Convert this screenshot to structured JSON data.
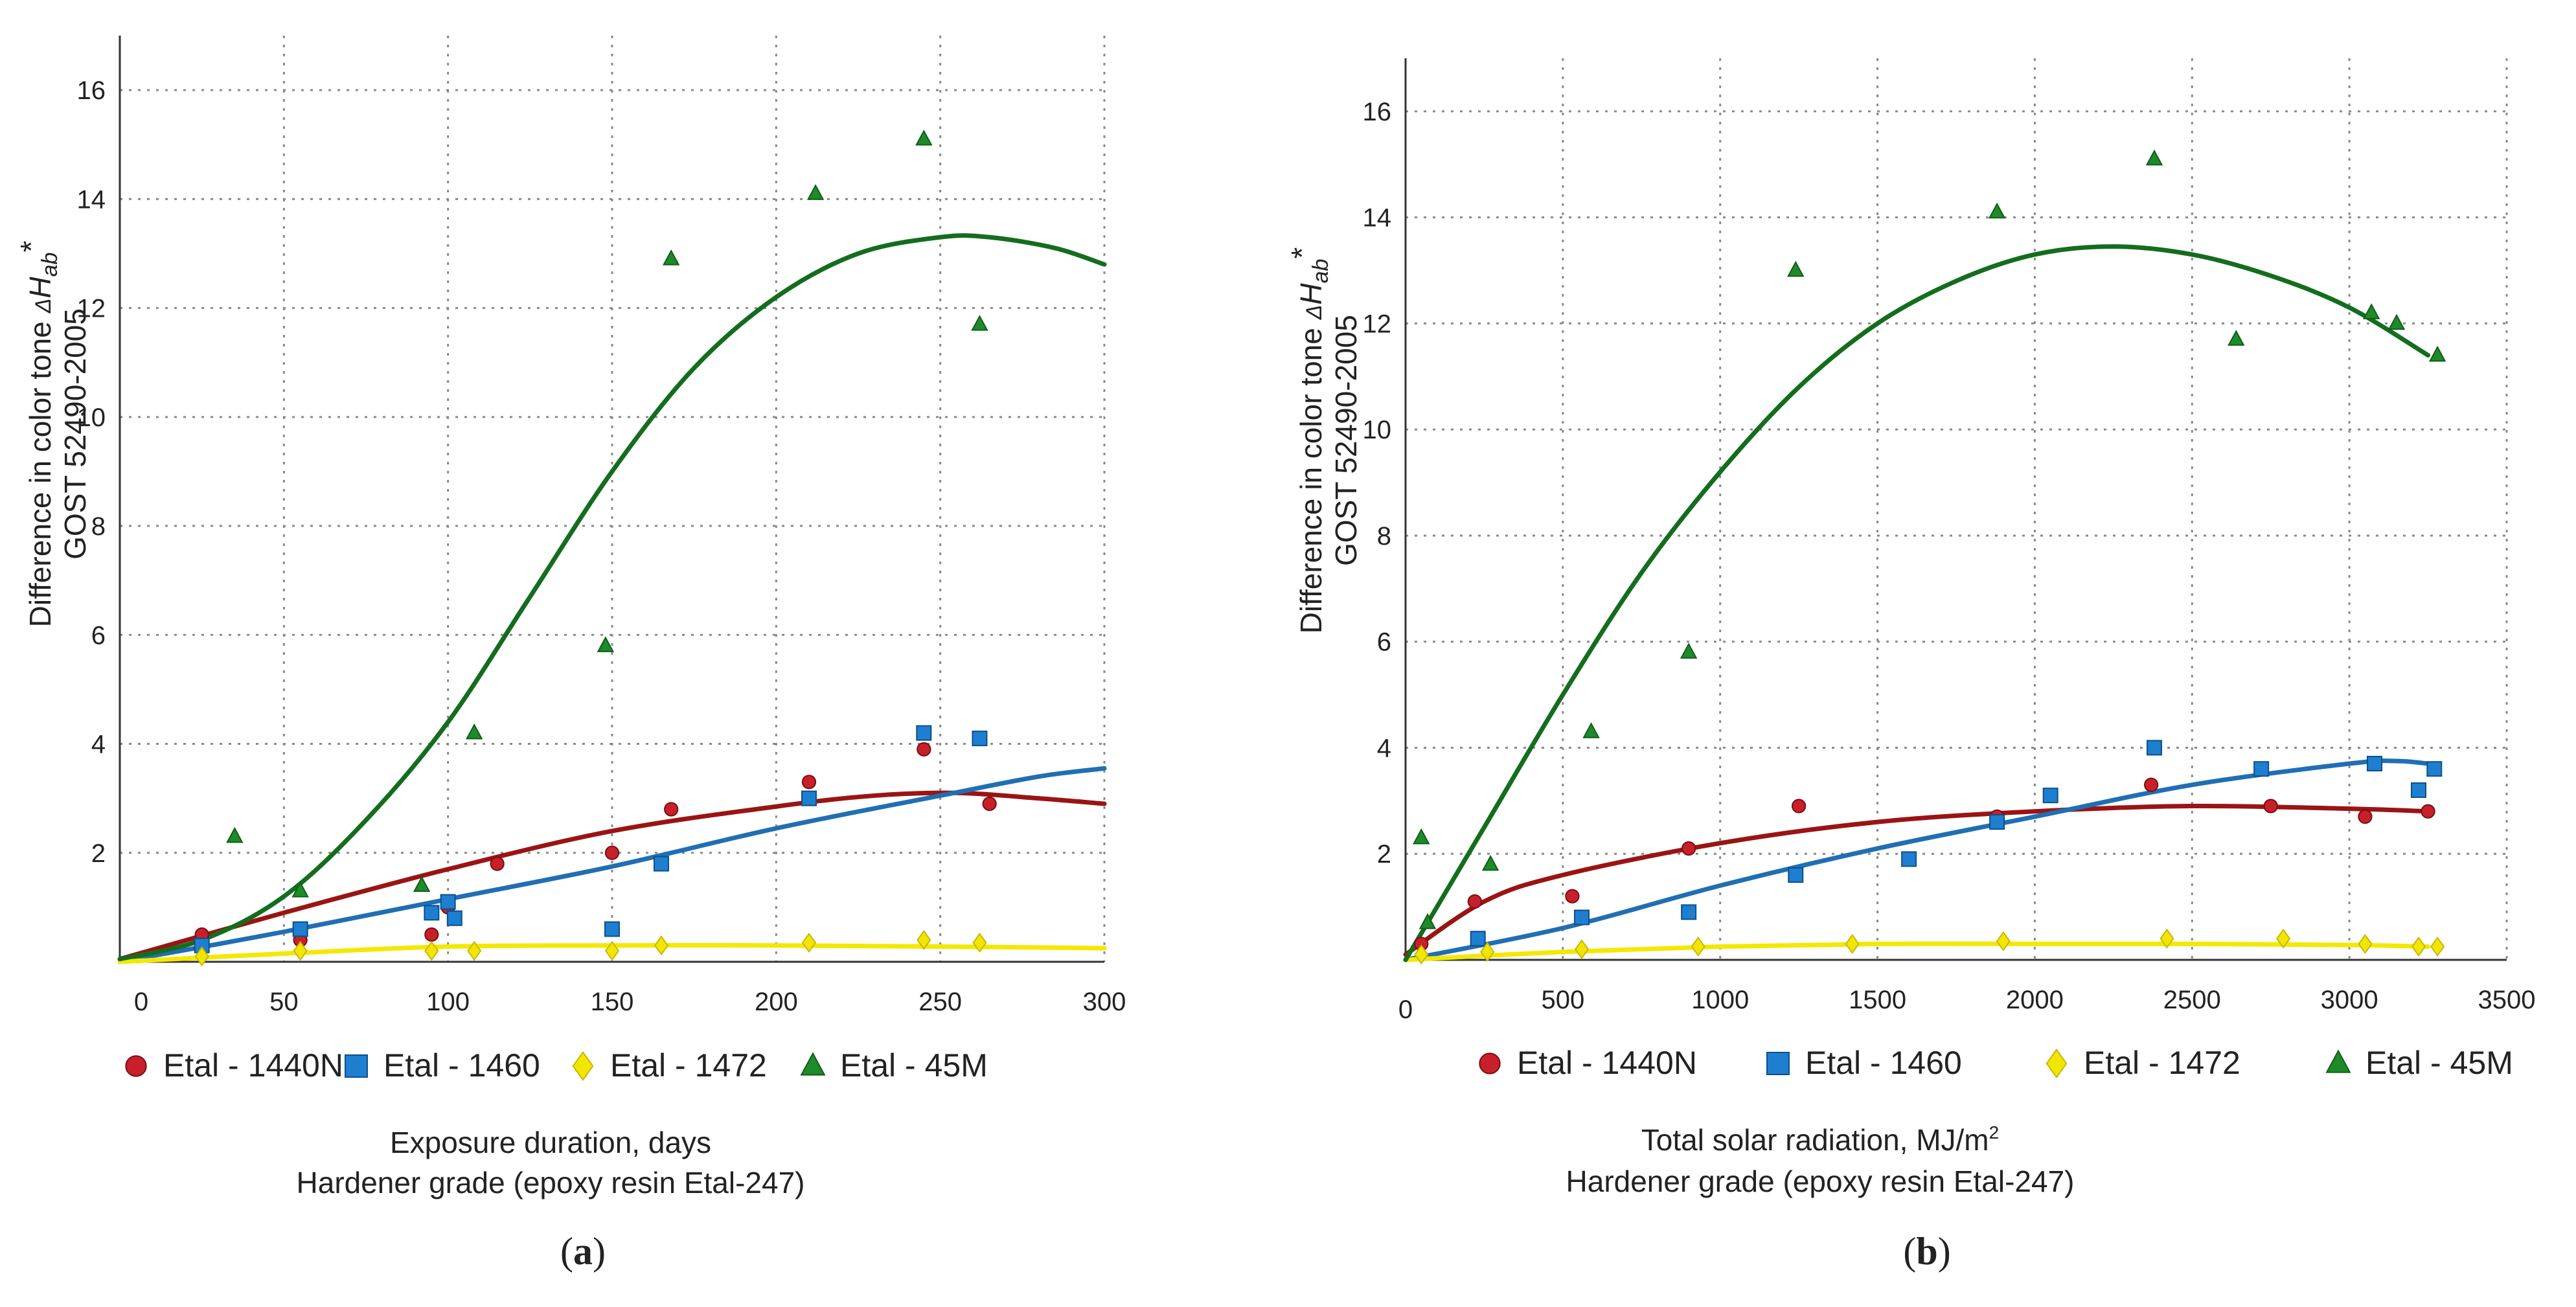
{
  "figure": {
    "series_styles": [
      {
        "name": "Etal - 1440N",
        "color": "#c8202a",
        "marker": "circle"
      },
      {
        "name": "Etal - 1460",
        "color": "#1e7fd0",
        "marker": "square"
      },
      {
        "name": "Etal - 1472",
        "color": "#f2e600",
        "marker": "diamond"
      },
      {
        "name": "Etal - 45M",
        "color": "#1e8a2a",
        "marker": "triangle"
      }
    ],
    "trend_colors": [
      "#9a1414",
      "#1f6fb4",
      "#f4e800",
      "#146d1e"
    ]
  },
  "chart_data": [
    {
      "id": "a",
      "type": "scatter",
      "caption_open": "(",
      "caption_letter": "a",
      "caption_close": ")",
      "ylabel_line1": "Difference in color tone ",
      "ylabel_delta": "Δ",
      "ylabel_symbol": "H",
      "ylabel_sub": "ab",
      "ylabel_star": "*",
      "ylabel_line2": "GOST  52490-2005",
      "xlabel_line1": "Exposure duration, days",
      "xlabel_line2": "Hardener grade (epoxy resin Etal-247)",
      "origin_label": "0",
      "xlim": [
        0,
        300
      ],
      "ylim": [
        0,
        17
      ],
      "xticks": [
        50,
        100,
        150,
        200,
        250,
        300
      ],
      "yticks": [
        2,
        4,
        6,
        8,
        10,
        12,
        14,
        16
      ],
      "grid": true,
      "legend_position": "bottom",
      "series": [
        {
          "name": "Etal - 1440N",
          "points": [
            [
              25,
              0.5
            ],
            [
              55,
              0.4
            ],
            [
              95,
              0.5
            ],
            [
              100,
              1.0
            ],
            [
              115,
              1.8
            ],
            [
              150,
              2.0
            ],
            [
              168,
              2.8
            ],
            [
              210,
              3.3
            ],
            [
              245,
              3.9
            ],
            [
              265,
              2.9
            ]
          ],
          "trend": [
            [
              0,
              0.05
            ],
            [
              50,
              0.9
            ],
            [
              100,
              1.7
            ],
            [
              150,
              2.4
            ],
            [
              200,
              2.85
            ],
            [
              230,
              3.05
            ],
            [
              255,
              3.1
            ],
            [
              280,
              3.0
            ],
            [
              300,
              2.9
            ]
          ]
        },
        {
          "name": "Etal - 1460",
          "points": [
            [
              25,
              0.3
            ],
            [
              55,
              0.6
            ],
            [
              95,
              0.9
            ],
            [
              100,
              1.1
            ],
            [
              102,
              0.8
            ],
            [
              150,
              0.6
            ],
            [
              165,
              1.8
            ],
            [
              210,
              3.0
            ],
            [
              245,
              4.2
            ],
            [
              262,
              4.1
            ]
          ],
          "trend": [
            [
              0,
              0.0
            ],
            [
              50,
              0.55
            ],
            [
              100,
              1.15
            ],
            [
              150,
              1.75
            ],
            [
              200,
              2.45
            ],
            [
              250,
              3.05
            ],
            [
              280,
              3.4
            ],
            [
              300,
              3.55
            ]
          ]
        },
        {
          "name": "Etal - 1472",
          "points": [
            [
              25,
              0.1
            ],
            [
              55,
              0.2
            ],
            [
              95,
              0.2
            ],
            [
              108,
              0.2
            ],
            [
              150,
              0.2
            ],
            [
              165,
              0.3
            ],
            [
              210,
              0.35
            ],
            [
              245,
              0.4
            ],
            [
              262,
              0.35
            ]
          ],
          "trend": [
            [
              0,
              0.0
            ],
            [
              50,
              0.15
            ],
            [
              100,
              0.28
            ],
            [
              150,
              0.3
            ],
            [
              200,
              0.3
            ],
            [
              250,
              0.28
            ],
            [
              300,
              0.25
            ]
          ]
        },
        {
          "name": "Etal - 45M",
          "points": [
            [
              35,
              2.3
            ],
            [
              55,
              1.3
            ],
            [
              92,
              1.4
            ],
            [
              108,
              4.2
            ],
            [
              148,
              5.8
            ],
            [
              168,
              12.9
            ],
            [
              212,
              14.1
            ],
            [
              245,
              15.1
            ],
            [
              262,
              11.7
            ]
          ],
          "trend": [
            [
              0,
              0.05
            ],
            [
              25,
              0.4
            ],
            [
              50,
              1.2
            ],
            [
              75,
              2.6
            ],
            [
              100,
              4.4
            ],
            [
              125,
              6.7
            ],
            [
              150,
              9.0
            ],
            [
              175,
              10.9
            ],
            [
              200,
              12.2
            ],
            [
              225,
              13.0
            ],
            [
              250,
              13.3
            ],
            [
              265,
              13.3
            ],
            [
              285,
              13.1
            ],
            [
              300,
              12.8
            ]
          ]
        }
      ]
    },
    {
      "id": "b",
      "type": "scatter",
      "caption_open": "(",
      "caption_letter": "b",
      "caption_close": ")",
      "ylabel_line1": "Difference in color tone ",
      "ylabel_delta": "Δ",
      "ylabel_symbol": "H",
      "ylabel_sub": "ab",
      "ylabel_star": "*",
      "ylabel_line2": "GOST  52490-2005",
      "xlabel_line1": "Total solar radiation, MJ/m",
      "xlabel_sup": "2",
      "xlabel_line2": "Hardener grade (epoxy resin Etal-247)",
      "origin_label": "0",
      "xlim": [
        0,
        3500
      ],
      "ylim": [
        0,
        17
      ],
      "xticks": [
        500,
        1000,
        1500,
        2000,
        2500,
        3000,
        3500
      ],
      "yticks": [
        2,
        4,
        6,
        8,
        10,
        12,
        14,
        16
      ],
      "grid": true,
      "legend_position": "bottom",
      "series": [
        {
          "name": "Etal - 1440N",
          "points": [
            [
              50,
              0.3
            ],
            [
              220,
              1.1
            ],
            [
              530,
              1.2
            ],
            [
              900,
              2.1
            ],
            [
              1250,
              2.9
            ],
            [
              1880,
              2.7
            ],
            [
              2370,
              3.3
            ],
            [
              2750,
              2.9
            ],
            [
              3050,
              2.7
            ],
            [
              3250,
              2.8
            ]
          ],
          "trend": [
            [
              0,
              0.1
            ],
            [
              250,
              1.1
            ],
            [
              500,
              1.6
            ],
            [
              1000,
              2.2
            ],
            [
              1500,
              2.6
            ],
            [
              2000,
              2.8
            ],
            [
              2500,
              2.9
            ],
            [
              3000,
              2.85
            ],
            [
              3250,
              2.8
            ]
          ]
        },
        {
          "name": "Etal - 1460",
          "points": [
            [
              230,
              0.4
            ],
            [
              560,
              0.8
            ],
            [
              900,
              0.9
            ],
            [
              1240,
              1.6
            ],
            [
              1600,
              1.9
            ],
            [
              1880,
              2.6
            ],
            [
              2050,
              3.1
            ],
            [
              2380,
              4.0
            ],
            [
              2720,
              3.6
            ],
            [
              3080,
              3.7
            ],
            [
              3220,
              3.2
            ],
            [
              3270,
              3.6
            ]
          ],
          "trend": [
            [
              0,
              0.0
            ],
            [
              500,
              0.6
            ],
            [
              1000,
              1.4
            ],
            [
              1500,
              2.1
            ],
            [
              2000,
              2.7
            ],
            [
              2500,
              3.3
            ],
            [
              3000,
              3.7
            ],
            [
              3150,
              3.75
            ],
            [
              3250,
              3.7
            ]
          ]
        },
        {
          "name": "Etal - 1472",
          "points": [
            [
              50,
              0.1
            ],
            [
              260,
              0.15
            ],
            [
              560,
              0.2
            ],
            [
              930,
              0.25
            ],
            [
              1420,
              0.3
            ],
            [
              1900,
              0.35
            ],
            [
              2420,
              0.4
            ],
            [
              2790,
              0.4
            ],
            [
              3050,
              0.3
            ],
            [
              3220,
              0.25
            ],
            [
              3280,
              0.25
            ]
          ],
          "trend": [
            [
              0,
              0.0
            ],
            [
              500,
              0.15
            ],
            [
              1000,
              0.25
            ],
            [
              1500,
              0.3
            ],
            [
              2000,
              0.3
            ],
            [
              2500,
              0.3
            ],
            [
              3000,
              0.28
            ],
            [
              3250,
              0.25
            ]
          ]
        },
        {
          "name": "Etal - 45M",
          "points": [
            [
              50,
              2.3
            ],
            [
              70,
              0.7
            ],
            [
              270,
              1.8
            ],
            [
              590,
              4.3
            ],
            [
              900,
              5.8
            ],
            [
              1240,
              13.0
            ],
            [
              1880,
              14.1
            ],
            [
              2380,
              15.1
            ],
            [
              2640,
              11.7
            ],
            [
              3070,
              12.2
            ],
            [
              3150,
              12.0
            ],
            [
              3280,
              11.4
            ]
          ],
          "trend": [
            [
              0,
              0.0
            ],
            [
              250,
              2.5
            ],
            [
              500,
              5.0
            ],
            [
              750,
              7.3
            ],
            [
              1000,
              9.2
            ],
            [
              1250,
              10.8
            ],
            [
              1500,
              12.0
            ],
            [
              1750,
              12.8
            ],
            [
              2000,
              13.3
            ],
            [
              2250,
              13.45
            ],
            [
              2500,
              13.3
            ],
            [
              2750,
              12.9
            ],
            [
              3000,
              12.3
            ],
            [
              3250,
              11.4
            ]
          ]
        }
      ]
    }
  ]
}
